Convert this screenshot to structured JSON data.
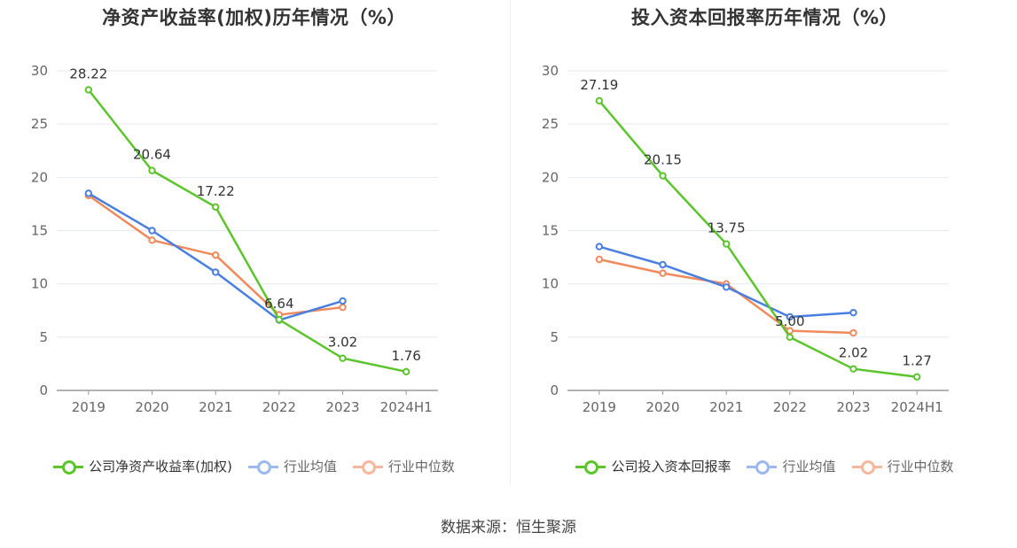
{
  "footer": {
    "source": "数据来源：恒生聚源"
  },
  "colors": {
    "company": "#5cc52c",
    "avg": "#4a7fe0",
    "median": "#f08a5d"
  },
  "chart_data": [
    {
      "type": "line",
      "title": "净资产收益率(加权)历年情况（%）",
      "categories": [
        "2019",
        "2020",
        "2021",
        "2022",
        "2023",
        "2024H1"
      ],
      "ylim": [
        0,
        30
      ],
      "yticks": [
        "0",
        "5",
        "10",
        "15",
        "20",
        "25",
        "30"
      ],
      "grid": true,
      "legend_position": "bottom-center",
      "series": [
        {
          "name": "公司净资产收益率(加权)",
          "values": [
            28.22,
            20.64,
            17.22,
            6.64,
            3.02,
            1.76
          ],
          "labels": [
            "28.22",
            "20.64",
            "17.22",
            "6.64",
            "3.02",
            "1.76"
          ]
        },
        {
          "name": "行业均值",
          "values": [
            18.5,
            15.0,
            11.1,
            6.6,
            8.4,
            null
          ]
        },
        {
          "name": "行业中位数",
          "values": [
            18.3,
            14.1,
            12.7,
            7.1,
            7.8,
            null
          ]
        }
      ]
    },
    {
      "type": "line",
      "title": "投入资本回报率历年情况（%）",
      "categories": [
        "2019",
        "2020",
        "2021",
        "2022",
        "2023",
        "2024H1"
      ],
      "ylim": [
        0,
        30
      ],
      "yticks": [
        "0",
        "5",
        "10",
        "15",
        "20",
        "25",
        "30"
      ],
      "grid": true,
      "legend_position": "bottom-center",
      "series": [
        {
          "name": "公司投入资本回报率",
          "values": [
            27.19,
            20.15,
            13.75,
            5.0,
            2.02,
            1.27
          ],
          "labels": [
            "27.19",
            "20.15",
            "13.75",
            "5.00",
            "2.02",
            "1.27"
          ]
        },
        {
          "name": "行业均值",
          "values": [
            13.5,
            11.8,
            9.7,
            6.9,
            7.3,
            null
          ]
        },
        {
          "name": "行业中位数",
          "values": [
            12.3,
            11.0,
            10.0,
            5.6,
            5.4,
            null
          ]
        }
      ]
    }
  ]
}
